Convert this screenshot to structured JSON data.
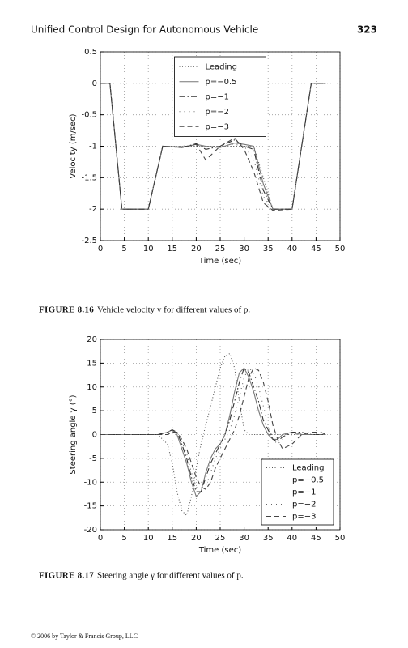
{
  "header": {
    "title": "Unified Control Design for Autonomous Vehicle",
    "page": "323"
  },
  "footer": "© 2006 by Taylor & Francis Group, LLC",
  "chart_data": [
    {
      "type": "line",
      "x_label": "Time (sec)",
      "y_label": "Velocity (m/sec)",
      "caption": {
        "label": "FIGURE 8.16",
        "text": "Vehicle velocity v for different values of p."
      },
      "xlim": [
        0,
        50
      ],
      "ylim": [
        -2.5,
        0.5
      ],
      "xticks": [
        0,
        5,
        10,
        15,
        20,
        25,
        30,
        35,
        40,
        45,
        50
      ],
      "yticks": [
        0.5,
        0,
        -0.5,
        -1,
        -1.5,
        -2,
        -2.5
      ],
      "grid": true,
      "legend": "upper center",
      "x": [
        0,
        2,
        4.5,
        10,
        13,
        17,
        20,
        22,
        25,
        28,
        30,
        32,
        34,
        36,
        40,
        44,
        47
      ],
      "series": [
        {
          "name": "Leading",
          "color": "#555555",
          "dash": "dotted",
          "values": [
            0,
            0,
            -2,
            -2,
            -1,
            -1,
            -1,
            -1,
            -1,
            -1,
            -1,
            -1,
            -1.5,
            -2,
            -2,
            0,
            0
          ]
        },
        {
          "name": "p=−0.5",
          "color": "#777777",
          "dash": "solid",
          "values": [
            0,
            0,
            -2,
            -2,
            -1,
            -1.02,
            -0.97,
            -1,
            -1.02,
            -0.95,
            -0.97,
            -1,
            -1.6,
            -2,
            -2,
            0,
            0
          ]
        },
        {
          "name": "p=−1",
          "color": "#333333",
          "dash": "dashdot",
          "values": [
            0,
            0,
            -2,
            -2,
            -1,
            -1.02,
            -0.96,
            -1.05,
            -1,
            -0.9,
            -1,
            -1.05,
            -1.7,
            -2,
            -2,
            0,
            0
          ]
        },
        {
          "name": "p=−2",
          "color": "#666666",
          "dash": "sparse",
          "values": [
            0,
            0,
            -2,
            -2,
            -1,
            -1,
            -0.98,
            -1,
            -1,
            -0.97,
            -1,
            -1.2,
            -1.8,
            -2,
            -2,
            0,
            0
          ]
        },
        {
          "name": "p=−3",
          "color": "#444444",
          "dash": "dashed",
          "values": [
            0,
            0,
            -2,
            -2,
            -1,
            -1.02,
            -0.97,
            -1.22,
            -1,
            -0.87,
            -1.05,
            -1.4,
            -1.9,
            -2.02,
            -2,
            0,
            0
          ]
        }
      ]
    },
    {
      "type": "line",
      "x_label": "Time (sec)",
      "y_label": "Steering angle γ (°)",
      "caption": {
        "label": "FIGURE 8.17",
        "text": "Steering angle γ for different values of p."
      },
      "xlim": [
        0,
        50
      ],
      "ylim": [
        -20,
        20
      ],
      "xticks": [
        0,
        5,
        10,
        15,
        20,
        25,
        30,
        35,
        40,
        45,
        50
      ],
      "yticks": [
        20,
        15,
        10,
        5,
        0,
        -5,
        -10,
        -15,
        -20
      ],
      "grid": true,
      "legend": "lower right",
      "x": [
        0,
        12,
        14,
        15,
        16,
        17,
        18,
        19,
        20,
        21,
        22,
        23,
        24,
        25,
        26,
        27,
        28,
        29,
        30,
        31,
        32,
        33,
        34,
        35,
        36,
        37,
        38,
        40,
        42,
        44,
        46,
        47
      ],
      "series": [
        {
          "name": "Leading",
          "color": "#555555",
          "dash": "dotted",
          "values": [
            0,
            0,
            -2,
            -6,
            -12,
            -16,
            -17,
            -13,
            -7,
            -2,
            2,
            6,
            10,
            14,
            16.5,
            17,
            14,
            7,
            1,
            0,
            0,
            0,
            0,
            0,
            0,
            0,
            0,
            0,
            0,
            0,
            0,
            0
          ]
        },
        {
          "name": "p=−0.5",
          "color": "#777777",
          "dash": "solid",
          "values": [
            0,
            0,
            0.5,
            1,
            0,
            -3,
            -6,
            -10,
            -13,
            -12,
            -8,
            -5,
            -3,
            -2,
            0,
            4,
            9,
            13,
            14,
            12,
            9,
            5,
            2,
            0,
            -1,
            -1,
            0,
            0.5,
            0,
            0,
            0,
            0
          ]
        },
        {
          "name": "p=−1",
          "color": "#333333",
          "dash": "dashdot",
          "values": [
            0,
            0,
            0.5,
            1,
            0.5,
            -2,
            -5,
            -9,
            -12,
            -12,
            -9,
            -6,
            -4,
            -2,
            0,
            3,
            7,
            11,
            14,
            13,
            10,
            7,
            3,
            1,
            -1,
            -1.5,
            -0.5,
            0.5,
            0.5,
            0,
            0,
            0
          ]
        },
        {
          "name": "p=−2",
          "color": "#666666",
          "dash": "sparse",
          "values": [
            0,
            0,
            0.3,
            0.8,
            0.5,
            -1.5,
            -4,
            -8,
            -11,
            -12.5,
            -11,
            -8,
            -5,
            -3,
            -1,
            1,
            4,
            8,
            12,
            14,
            13,
            10,
            6,
            2,
            -1,
            -2,
            -1,
            0,
            0.3,
            0,
            0,
            0
          ]
        },
        {
          "name": "p=−3",
          "color": "#444444",
          "dash": "dashed",
          "values": [
            0,
            0,
            0,
            0.5,
            0.5,
            -1,
            -3,
            -6,
            -9,
            -11,
            -11.5,
            -10,
            -7,
            -5,
            -3,
            -1,
            1,
            4,
            8,
            12,
            14,
            13.5,
            11,
            7,
            2,
            -1,
            -3,
            -2,
            0,
            0.5,
            0.5,
            0
          ]
        }
      ]
    }
  ]
}
